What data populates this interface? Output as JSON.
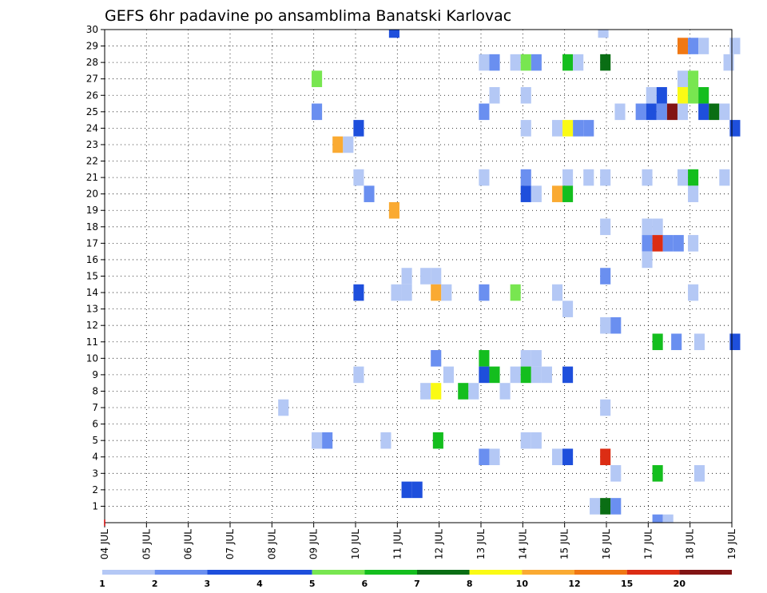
{
  "chart_data": {
    "type": "heatmap",
    "title": "GEFS 6hr padavine po ansamblima Banatski Karlovac",
    "x_tick_labels": [
      "04 JUL",
      "05 JUL",
      "06 JUL",
      "07 JUL",
      "08 JUL",
      "09 JUL",
      "10 JUL",
      "11 JUL",
      "12 JUL",
      "13 JUL",
      "14 JUL",
      "15 JUL",
      "16 JUL",
      "17 JUL",
      "18 JUL",
      "19 JUL"
    ],
    "x_range_days": [
      0,
      15
    ],
    "y_label_values": [
      1,
      2,
      3,
      4,
      5,
      6,
      7,
      8,
      9,
      10,
      11,
      12,
      13,
      14,
      15,
      16,
      17,
      18,
      19,
      20,
      21,
      22,
      23,
      24,
      25,
      26,
      27,
      28,
      29,
      30
    ],
    "y_range": [
      0,
      30
    ],
    "grid": true,
    "colorbar": {
      "tick_labels": [
        "1",
        "2",
        "3",
        "4",
        "5",
        "6",
        "7",
        "8",
        "10",
        "12",
        "15",
        "20"
      ],
      "colors": [
        "#b4c8f5",
        "#6a8ff0",
        "#1e4fdc",
        "#1e4fdc",
        "#78e650",
        "#14be1e",
        "#0a6e14",
        "#fafa14",
        "#faaa32",
        "#f07814",
        "#dc2d14",
        "#821414"
      ],
      "note": "colors between ticks"
    },
    "cells": [
      [
        6.8,
        30,
        "#1e4fdc"
      ],
      [
        11.8,
        30,
        "#b4c8f5"
      ],
      [
        13.7,
        29,
        "#f07814"
      ],
      [
        13.95,
        29,
        "#6a8ff0"
      ],
      [
        14.2,
        29,
        "#b4c8f5"
      ],
      [
        14.95,
        29,
        "#b4c8f5"
      ],
      [
        8.95,
        28,
        "#b4c8f5"
      ],
      [
        9.2,
        28,
        "#6a8ff0"
      ],
      [
        9.7,
        28,
        "#b4c8f5"
      ],
      [
        9.95,
        28,
        "#78e650"
      ],
      [
        10.2,
        28,
        "#6a8ff0"
      ],
      [
        10.95,
        28,
        "#14be1e"
      ],
      [
        11.2,
        28,
        "#b4c8f5"
      ],
      [
        11.85,
        28,
        "#0a6e14"
      ],
      [
        14.8,
        28,
        "#b4c8f5"
      ],
      [
        4.95,
        27,
        "#78e650"
      ],
      [
        13.7,
        27,
        "#b4c8f5"
      ],
      [
        13.95,
        27,
        "#78e650"
      ],
      [
        9.2,
        26,
        "#b4c8f5"
      ],
      [
        9.95,
        26,
        "#b4c8f5"
      ],
      [
        12.95,
        26,
        "#b4c8f5"
      ],
      [
        13.2,
        26,
        "#1e4fdc"
      ],
      [
        13.7,
        26,
        "#fafa14"
      ],
      [
        13.95,
        26,
        "#78e650"
      ],
      [
        14.2,
        26,
        "#14be1e"
      ],
      [
        4.95,
        25,
        "#6a8ff0"
      ],
      [
        8.95,
        25,
        "#6a8ff0"
      ],
      [
        12.2,
        25,
        "#b4c8f5"
      ],
      [
        12.7,
        25,
        "#6a8ff0"
      ],
      [
        12.95,
        25,
        "#1e4fdc"
      ],
      [
        13.2,
        25,
        "#6a8ff0"
      ],
      [
        13.45,
        25,
        "#821414"
      ],
      [
        13.7,
        25,
        "#b4c8f5"
      ],
      [
        14.2,
        25,
        "#1e4fdc"
      ],
      [
        14.45,
        25,
        "#0a6e14"
      ],
      [
        14.7,
        25,
        "#b4c8f5"
      ],
      [
        5.95,
        24,
        "#1e4fdc"
      ],
      [
        9.95,
        24,
        "#b4c8f5"
      ],
      [
        10.7,
        24,
        "#b4c8f5"
      ],
      [
        10.95,
        24,
        "#fafa14"
      ],
      [
        11.2,
        24,
        "#6a8ff0"
      ],
      [
        11.45,
        24,
        "#6a8ff0"
      ],
      [
        14.95,
        24,
        "#1e4fdc"
      ],
      [
        5.45,
        23,
        "#faaa32"
      ],
      [
        5.7,
        23,
        "#b4c8f5"
      ],
      [
        5.95,
        21,
        "#b4c8f5"
      ],
      [
        8.95,
        21,
        "#b4c8f5"
      ],
      [
        9.95,
        21,
        "#6a8ff0"
      ],
      [
        10.95,
        21,
        "#b4c8f5"
      ],
      [
        11.45,
        21,
        "#b4c8f5"
      ],
      [
        11.85,
        21,
        "#b4c8f5"
      ],
      [
        12.85,
        21,
        "#b4c8f5"
      ],
      [
        13.7,
        21,
        "#b4c8f5"
      ],
      [
        13.95,
        21,
        "#14be1e"
      ],
      [
        14.7,
        21,
        "#b4c8f5"
      ],
      [
        6.2,
        20,
        "#6a8ff0"
      ],
      [
        9.95,
        20,
        "#1e4fdc"
      ],
      [
        10.2,
        20,
        "#b4c8f5"
      ],
      [
        10.7,
        20,
        "#faaa32"
      ],
      [
        10.95,
        20,
        "#14be1e"
      ],
      [
        13.95,
        20,
        "#b4c8f5"
      ],
      [
        6.8,
        19,
        "#faaa32"
      ],
      [
        11.85,
        18,
        "#b4c8f5"
      ],
      [
        12.85,
        18,
        "#b4c8f5"
      ],
      [
        13.1,
        18,
        "#b4c8f5"
      ],
      [
        12.85,
        17,
        "#6a8ff0"
      ],
      [
        13.1,
        17,
        "#dc2d14"
      ],
      [
        13.35,
        17,
        "#6a8ff0"
      ],
      [
        13.6,
        17,
        "#6a8ff0"
      ],
      [
        12.85,
        16,
        "#b4c8f5"
      ],
      [
        13.95,
        17,
        "#b4c8f5"
      ],
      [
        7.1,
        15,
        "#b4c8f5"
      ],
      [
        7.55,
        15,
        "#b4c8f5"
      ],
      [
        7.8,
        15,
        "#b4c8f5"
      ],
      [
        11.85,
        15,
        "#6a8ff0"
      ],
      [
        5.95,
        14,
        "#1e4fdc"
      ],
      [
        6.85,
        14,
        "#b4c8f5"
      ],
      [
        7.1,
        14,
        "#b4c8f5"
      ],
      [
        7.8,
        14,
        "#faaa32"
      ],
      [
        8.05,
        14,
        "#b4c8f5"
      ],
      [
        8.95,
        14,
        "#6a8ff0"
      ],
      [
        9.7,
        14,
        "#78e650"
      ],
      [
        10.7,
        14,
        "#b4c8f5"
      ],
      [
        13.95,
        14,
        "#b4c8f5"
      ],
      [
        10.95,
        13,
        "#b4c8f5"
      ],
      [
        11.85,
        12,
        "#b4c8f5"
      ],
      [
        12.1,
        12,
        "#6a8ff0"
      ],
      [
        13.1,
        11,
        "#14be1e"
      ],
      [
        13.55,
        11,
        "#6a8ff0"
      ],
      [
        14.1,
        11,
        "#b4c8f5"
      ],
      [
        14.95,
        11,
        "#1e4fdc"
      ],
      [
        7.8,
        10,
        "#6a8ff0"
      ],
      [
        8.95,
        10,
        "#14be1e"
      ],
      [
        9.95,
        10,
        "#b4c8f5"
      ],
      [
        10.2,
        10,
        "#b4c8f5"
      ],
      [
        5.95,
        9,
        "#b4c8f5"
      ],
      [
        8.1,
        9,
        "#b4c8f5"
      ],
      [
        8.95,
        9,
        "#1e4fdc"
      ],
      [
        9.2,
        9,
        "#14be1e"
      ],
      [
        9.7,
        9,
        "#b4c8f5"
      ],
      [
        9.95,
        9,
        "#14be1e"
      ],
      [
        10.2,
        9,
        "#b4c8f5"
      ],
      [
        10.45,
        9,
        "#b4c8f5"
      ],
      [
        10.95,
        9,
        "#1e4fdc"
      ],
      [
        7.55,
        8,
        "#b4c8f5"
      ],
      [
        7.8,
        8,
        "#fafa14"
      ],
      [
        8.45,
        8,
        "#14be1e"
      ],
      [
        8.7,
        8,
        "#b4c8f5"
      ],
      [
        9.45,
        8,
        "#b4c8f5"
      ],
      [
        4.15,
        7,
        "#b4c8f5"
      ],
      [
        11.85,
        7,
        "#b4c8f5"
      ],
      [
        4.95,
        5,
        "#b4c8f5"
      ],
      [
        5.2,
        5,
        "#6a8ff0"
      ],
      [
        6.6,
        5,
        "#b4c8f5"
      ],
      [
        7.85,
        5,
        "#14be1e"
      ],
      [
        9.95,
        5,
        "#b4c8f5"
      ],
      [
        10.2,
        5,
        "#b4c8f5"
      ],
      [
        8.95,
        4,
        "#6a8ff0"
      ],
      [
        9.2,
        4,
        "#b4c8f5"
      ],
      [
        10.7,
        4,
        "#b4c8f5"
      ],
      [
        10.95,
        4,
        "#1e4fdc"
      ],
      [
        11.85,
        4,
        "#dc2d14"
      ],
      [
        12.1,
        3,
        "#b4c8f5"
      ],
      [
        13.1,
        3,
        "#14be1e"
      ],
      [
        14.1,
        3,
        "#b4c8f5"
      ],
      [
        7.1,
        2,
        "#1e4fdc"
      ],
      [
        7.35,
        2,
        "#1e4fdc"
      ],
      [
        11.6,
        1,
        "#b4c8f5"
      ],
      [
        11.85,
        1,
        "#0a6e14"
      ],
      [
        12.1,
        1,
        "#6a8ff0"
      ],
      [
        13.1,
        0,
        "#6a8ff0"
      ],
      [
        13.35,
        0,
        "#b4c8f5"
      ]
    ]
  }
}
